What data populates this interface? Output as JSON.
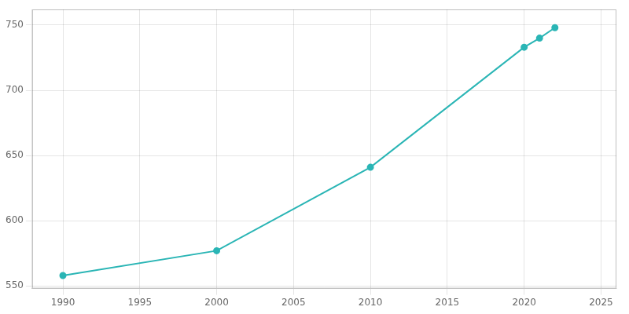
{
  "chart_data": {
    "type": "line",
    "x": [
      1990,
      2000,
      2010,
      2020,
      2021,
      2022
    ],
    "values": [
      558,
      577,
      641,
      733,
      740,
      748
    ],
    "color": "#2ab5b5",
    "marker": "circle",
    "xlim": [
      1988,
      2026
    ],
    "ylim": [
      548,
      762
    ],
    "xticks": [
      1990,
      1995,
      2000,
      2005,
      2010,
      2015,
      2020,
      2025
    ],
    "yticks": [
      550,
      600,
      650,
      700,
      750
    ],
    "grid": true
  }
}
